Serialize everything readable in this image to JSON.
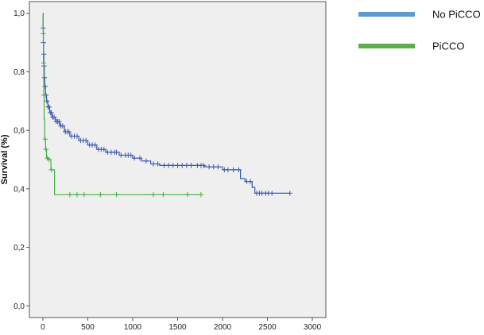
{
  "chart_data": {
    "type": "line",
    "subtype": "kaplan-meier",
    "title": "",
    "xlabel": "",
    "ylabel": "Survival (%)",
    "xlim": [
      -150,
      3150
    ],
    "ylim": [
      -0.04,
      1.04
    ],
    "xticks": [
      0,
      500,
      1000,
      1500,
      2000,
      2500,
      3000
    ],
    "yticks": [
      0.0,
      0.2,
      0.4,
      0.6,
      0.8,
      1.0
    ],
    "ytick_labels": [
      "0,0",
      "0,2",
      "0,4",
      "0,6",
      "0,8",
      "1,0"
    ],
    "plot_background": "#efefef",
    "grid": false,
    "legend_position": "top-right",
    "series": [
      {
        "name": "No PiCCO",
        "color": "#3d5ab0",
        "legend_color": "#5b9bd5",
        "steps": [
          [
            0,
            1.0
          ],
          [
            2,
            0.95
          ],
          [
            5,
            0.9
          ],
          [
            8,
            0.86
          ],
          [
            12,
            0.82
          ],
          [
            16,
            0.78
          ],
          [
            22,
            0.75
          ],
          [
            30,
            0.72
          ],
          [
            40,
            0.7
          ],
          [
            55,
            0.68
          ],
          [
            75,
            0.66
          ],
          [
            100,
            0.645
          ],
          [
            140,
            0.63
          ],
          [
            190,
            0.615
          ],
          [
            240,
            0.595
          ],
          [
            300,
            0.58
          ],
          [
            400,
            0.565
          ],
          [
            500,
            0.55
          ],
          [
            600,
            0.535
          ],
          [
            700,
            0.525
          ],
          [
            850,
            0.515
          ],
          [
            1000,
            0.505
          ],
          [
            1100,
            0.495
          ],
          [
            1200,
            0.485
          ],
          [
            1300,
            0.48
          ],
          [
            1800,
            0.475
          ],
          [
            2000,
            0.465
          ],
          [
            2200,
            0.435
          ],
          [
            2250,
            0.425
          ],
          [
            2330,
            0.405
          ],
          [
            2360,
            0.385
          ],
          [
            2750,
            0.385
          ]
        ],
        "censored": [
          3,
          6,
          10,
          14,
          18,
          25,
          35,
          45,
          60,
          70,
          85,
          95,
          110,
          125,
          150,
          165,
          180,
          200,
          220,
          250,
          270,
          290,
          320,
          350,
          380,
          420,
          450,
          480,
          520,
          550,
          580,
          620,
          650,
          680,
          720,
          760,
          800,
          820,
          870,
          920,
          950,
          980,
          1020,
          1080,
          1150,
          1230,
          1280,
          1350,
          1400,
          1450,
          1500,
          1550,
          1600,
          1650,
          1720,
          1760,
          1790,
          1850,
          1900,
          1950,
          2020,
          2060,
          2120,
          2180,
          2270,
          2310,
          2380,
          2410,
          2440,
          2480,
          2510,
          2550,
          2750
        ]
      },
      {
        "name": "PiCCO",
        "color": "#46b045",
        "legend_color": "#5cb04a",
        "steps": [
          [
            0,
            1.0
          ],
          [
            3,
            0.93
          ],
          [
            6,
            0.83
          ],
          [
            10,
            0.72
          ],
          [
            14,
            0.64
          ],
          [
            20,
            0.57
          ],
          [
            30,
            0.535
          ],
          [
            40,
            0.505
          ],
          [
            60,
            0.5
          ],
          [
            90,
            0.465
          ],
          [
            130,
            0.38
          ],
          [
            1760,
            0.38
          ]
        ],
        "censored": [
          5,
          8,
          12,
          25,
          35,
          50,
          70,
          95,
          300,
          380,
          460,
          640,
          820,
          1230,
          1340,
          1610,
          1760
        ]
      }
    ]
  }
}
